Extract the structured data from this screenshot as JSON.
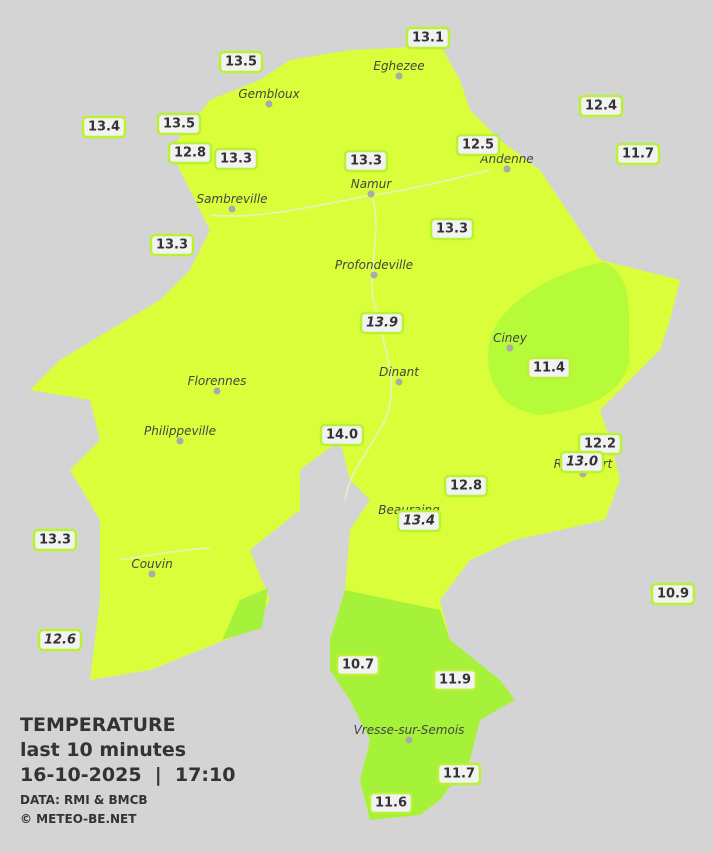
{
  "legend": {
    "title": "TEMPERATURE",
    "period": "last 10 minutes",
    "datetime": "16-10-2025  |  17:10",
    "source": "DATA: RMI & BMCB",
    "copyright": "© METEO-BE.NET"
  },
  "towns": [
    "Eghezee",
    "Gembloux",
    "Andenne",
    "Namur",
    "Sambreville",
    "Profondeville",
    "Ciney",
    "Dinant",
    "Florennes",
    "Philippeville",
    "Beauraing",
    "Rochefort",
    "Couvin",
    "Vresse-sur-Semois"
  ],
  "stations": [
    "13.1",
    "13.5",
    "12.4",
    "13.4",
    "13.5",
    "12.5",
    "12.8",
    "13.3",
    "13.3",
    "11.7",
    "13.3",
    "13.3",
    "13.9",
    "11.4",
    "14.0",
    "12.2",
    "13.0",
    "12.8",
    "13.4",
    "13.3",
    "10.9",
    "12.6",
    "10.7",
    "11.9",
    "11.7",
    "11.6"
  ]
}
